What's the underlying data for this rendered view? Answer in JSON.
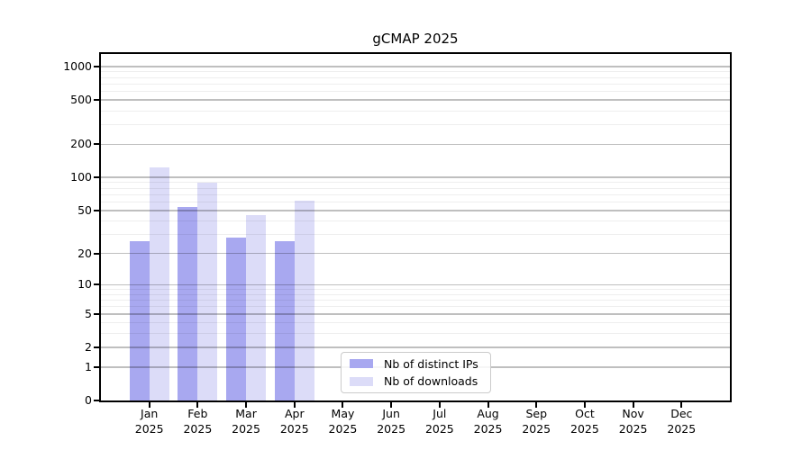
{
  "figure": {
    "background": "#ffffff"
  },
  "chart_data": {
    "type": "bar",
    "title": "gCMAP 2025",
    "categories": [
      "Jan 2025",
      "Feb 2025",
      "Mar 2025",
      "Apr 2025",
      "May 2025",
      "Jun 2025",
      "Jul 2025",
      "Aug 2025",
      "Sep 2025",
      "Oct 2025",
      "Nov 2025",
      "Dec 2025"
    ],
    "series": [
      {
        "name": "Nb of distinct IPs",
        "color": "#a8a8f0",
        "values": [
          26,
          54,
          28,
          26,
          0,
          0,
          0,
          0,
          0,
          0,
          0,
          0
        ]
      },
      {
        "name": "Nb of downloads",
        "color": "#dcdcf8",
        "values": [
          124,
          90,
          45,
          62,
          0,
          0,
          0,
          0,
          0,
          0,
          0,
          0
        ]
      }
    ],
    "xlabel": "",
    "ylabel": "",
    "y_scale": "log1p",
    "y_ticks": [
      0,
      1,
      2,
      5,
      10,
      20,
      50,
      100,
      200,
      500,
      1000
    ],
    "y_minor_ticks": [
      3,
      4,
      6,
      7,
      8,
      9,
      30,
      40,
      60,
      70,
      80,
      90,
      300,
      400,
      600,
      700,
      800,
      900
    ],
    "ylim": [
      0,
      1300
    ],
    "grid": "horizontal",
    "legend": {
      "position": "inside-bottom-center",
      "items": [
        "Nb of distinct IPs",
        "Nb of downloads"
      ]
    }
  },
  "colors": {
    "axis": "#000000",
    "grid_major": "rgba(0,0,0,0.25)",
    "grid_minor": "rgba(0,0,0,0.065)",
    "bar_distinct_ips": "#a8a8f0",
    "bar_downloads": "#dcdcf8",
    "legend_border": "#cbcbcb"
  }
}
